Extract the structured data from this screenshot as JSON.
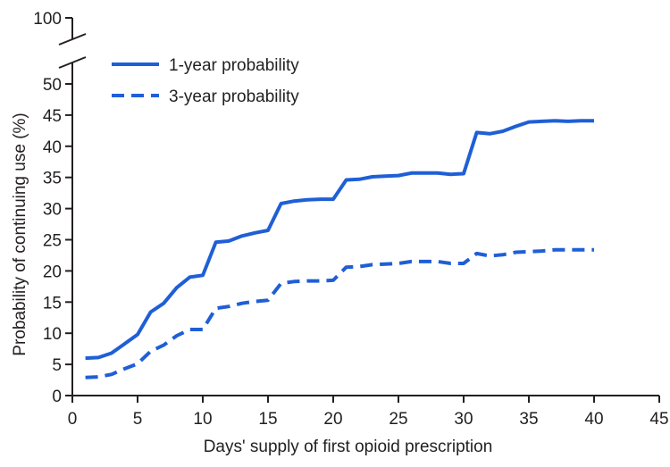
{
  "chart_data": {
    "type": "line",
    "xlabel": "Days' supply of first opioid prescription",
    "ylabel": "Probability of continuing use (%)",
    "xlim": [
      0,
      45
    ],
    "ylim": [
      0,
      50
    ],
    "y_break_top_value": 100,
    "x_ticks": [
      0,
      5,
      10,
      15,
      20,
      25,
      30,
      35,
      40,
      45
    ],
    "y_ticks": [
      0,
      5,
      10,
      15,
      20,
      25,
      30,
      35,
      40,
      45,
      50
    ],
    "grid": false,
    "legend_position": "top-left",
    "x": [
      1,
      2,
      3,
      4,
      5,
      6,
      7,
      8,
      9,
      10,
      11,
      12,
      13,
      14,
      15,
      16,
      17,
      18,
      19,
      20,
      21,
      22,
      23,
      24,
      25,
      26,
      27,
      28,
      29,
      30,
      31,
      32,
      33,
      34,
      35,
      36,
      37,
      38,
      39,
      40
    ],
    "series": [
      {
        "name": "1-year probability",
        "style": "solid",
        "color": "#1f5fd6",
        "values": [
          6.0,
          6.1,
          6.8,
          8.3,
          9.8,
          13.4,
          14.8,
          17.3,
          19.0,
          19.3,
          24.6,
          24.8,
          25.6,
          26.1,
          26.5,
          30.8,
          31.2,
          31.4,
          31.5,
          31.5,
          34.6,
          34.7,
          35.1,
          35.2,
          35.3,
          35.7,
          35.7,
          35.7,
          35.5,
          35.6,
          42.2,
          42.0,
          42.4,
          43.2,
          43.9,
          44.0,
          44.1,
          44.0,
          44.1,
          44.1
        ]
      },
      {
        "name": "3-year probability",
        "style": "dashed",
        "color": "#1f5fd6",
        "values": [
          2.9,
          3.0,
          3.4,
          4.3,
          5.1,
          7.1,
          8.1,
          9.6,
          10.6,
          10.6,
          14.0,
          14.3,
          14.8,
          15.1,
          15.3,
          18.0,
          18.3,
          18.4,
          18.4,
          18.5,
          20.6,
          20.7,
          21.0,
          21.1,
          21.2,
          21.5,
          21.5,
          21.5,
          21.2,
          21.2,
          22.8,
          22.4,
          22.6,
          23.0,
          23.1,
          23.2,
          23.4,
          23.4,
          23.4,
          23.4
        ]
      }
    ]
  }
}
